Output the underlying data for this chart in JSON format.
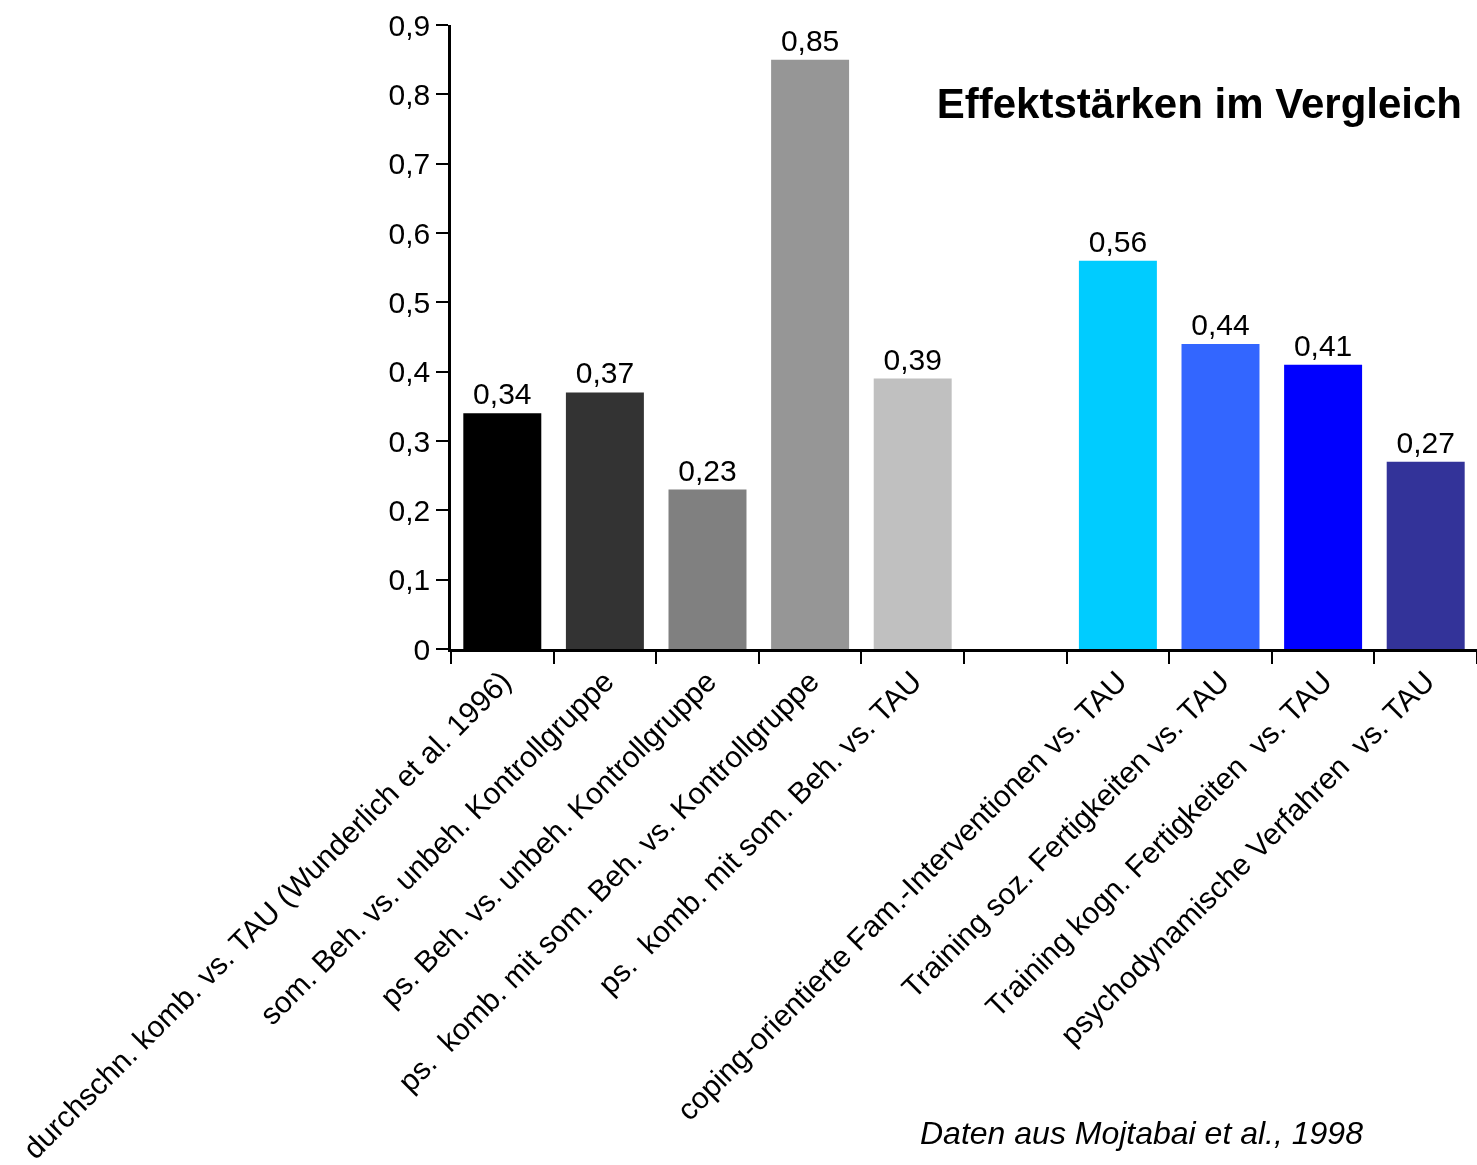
{
  "chart_data": {
    "type": "bar",
    "title": "Effektstärken im Vergleich",
    "categories": [
      "durchschn. komb. vs. TAU (Wunderlich et al. 1996)",
      "som. Beh. vs. unbeh. Kontrollgruppe",
      "ps. Beh. vs. unbeh. Kontrollgruppe",
      "ps.  komb. mit som. Beh. vs. Kontrollgruppe",
      "ps.  komb. mit som. Beh. vs. TAU",
      null,
      "coping-orientierte Fam.-Interventionen vs. TAU",
      "Training soz. Fertigkeiten vs. TAU",
      "Training kogn. Fertigkeiten  vs. TAU",
      "psychodynamische Verfahren  vs. TAU"
    ],
    "values": [
      0.34,
      0.37,
      0.23,
      0.85,
      0.39,
      null,
      0.56,
      0.44,
      0.41,
      0.27
    ],
    "colors": [
      "#000000",
      "#333333",
      "#808080",
      "#969696",
      "#c0c0c0",
      null,
      "#00ccff",
      "#3366ff",
      "#0000ff",
      "#333399"
    ],
    "value_labels": [
      "0,34",
      "0,37",
      "0,23",
      "0,85",
      "0,39",
      null,
      "0,56",
      "0,44",
      "0,41",
      "0,27"
    ],
    "ylim": [
      0,
      0.9
    ],
    "yticks": [
      0,
      {
        "value": 0.1,
        "label": "0,1"
      },
      {
        "value": 0.2,
        "label": "0,2"
      },
      {
        "value": 0.3,
        "label": "0,3"
      },
      {
        "value": 0.4,
        "label": "0,4"
      },
      {
        "value": 0.5,
        "label": "0,5"
      },
      {
        "value": 0.6,
        "label": "0,6"
      },
      {
        "value": 0.7,
        "label": "0,7"
      },
      {
        "value": 0.8,
        "label": "0,8"
      },
      {
        "value": 0.9,
        "label": "0,9"
      }
    ],
    "annotations": [
      "Daten aus Mojtabai et al., 1998"
    ]
  }
}
